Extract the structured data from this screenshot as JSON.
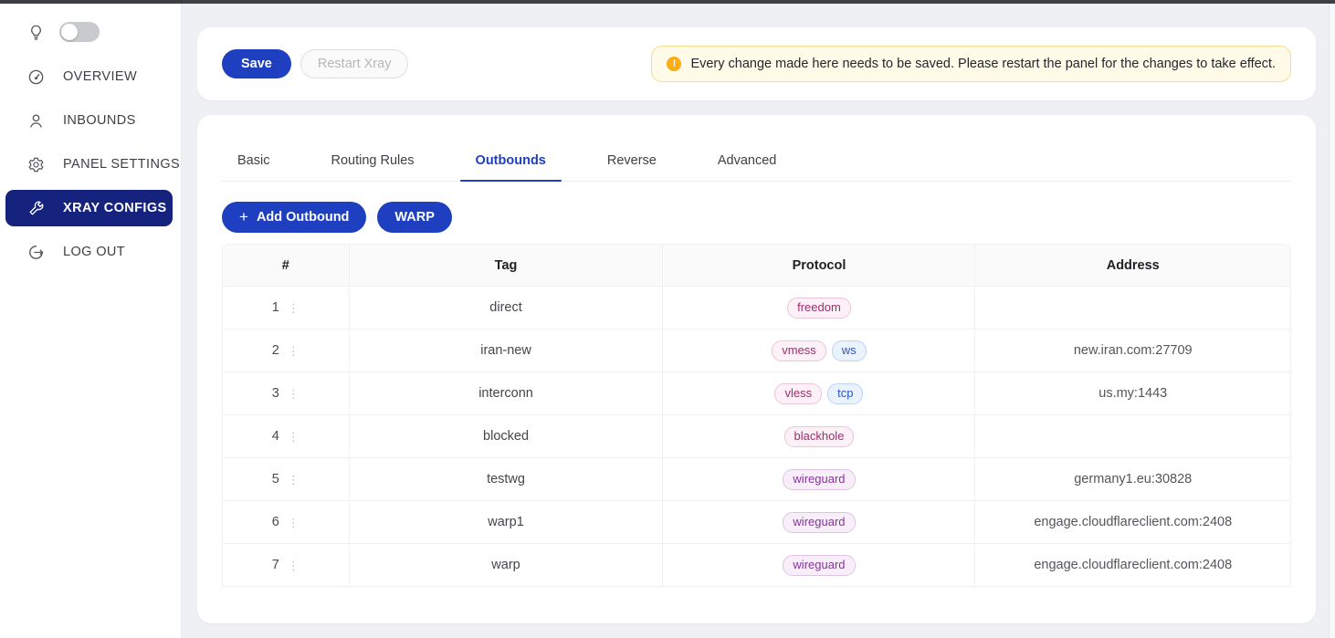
{
  "colors": {
    "accent": "#1d3fc0",
    "sidebar_active": "#16237e",
    "page_bg": "#eef0f4",
    "alert_bg": "#fffbe8",
    "alert_border": "#f7dd8b",
    "warning": "#faad14",
    "badge_magenta": "#9c2f6f",
    "badge_purple": "#86349c",
    "badge_blue": "#2d54c8"
  },
  "sidebar": {
    "theme_toggle": {
      "state": "off",
      "icon": "lightbulb-icon"
    },
    "items": [
      {
        "label": "OVERVIEW",
        "icon": "dashboard-icon",
        "active": false
      },
      {
        "label": "INBOUNDS",
        "icon": "user-icon",
        "active": false
      },
      {
        "label": "PANEL SETTINGS",
        "icon": "gear-icon",
        "active": false
      },
      {
        "label": "XRAY CONFIGS",
        "icon": "wrench-icon",
        "active": true
      },
      {
        "label": "LOG OUT",
        "icon": "logout-icon",
        "active": false
      }
    ]
  },
  "toolbar": {
    "save_label": "Save",
    "restart_label": "Restart Xray",
    "alert_icon": "!",
    "alert_text": "Every change made here needs to be saved. Please restart the panel for the changes to take effect."
  },
  "tabs": [
    {
      "label": "Basic",
      "active": false
    },
    {
      "label": "Routing Rules",
      "active": false
    },
    {
      "label": "Outbounds",
      "active": true
    },
    {
      "label": "Reverse",
      "active": false
    },
    {
      "label": "Advanced",
      "active": false
    }
  ],
  "actions": {
    "add_icon": "+",
    "add_outbound_label": "Add Outbound",
    "warp_label": "WARP"
  },
  "table": {
    "columns": [
      "#",
      "Tag",
      "Protocol",
      "Address"
    ],
    "row_menu_icon": "⋮",
    "rows": [
      {
        "num": "1",
        "tag": "direct",
        "protocols": [
          {
            "label": "freedom",
            "color": "magenta"
          }
        ],
        "address": ""
      },
      {
        "num": "2",
        "tag": "iran-new",
        "protocols": [
          {
            "label": "vmess",
            "color": "magenta"
          },
          {
            "label": "ws",
            "color": "blue"
          }
        ],
        "address": "new.iran.com:27709"
      },
      {
        "num": "3",
        "tag": "interconn",
        "protocols": [
          {
            "label": "vless",
            "color": "magenta"
          },
          {
            "label": "tcp",
            "color": "blue"
          }
        ],
        "address": "us.my:1443"
      },
      {
        "num": "4",
        "tag": "blocked",
        "protocols": [
          {
            "label": "blackhole",
            "color": "magenta"
          }
        ],
        "address": ""
      },
      {
        "num": "5",
        "tag": "testwg",
        "protocols": [
          {
            "label": "wireguard",
            "color": "purple"
          }
        ],
        "address": "germany1.eu:30828"
      },
      {
        "num": "6",
        "tag": "warp1",
        "protocols": [
          {
            "label": "wireguard",
            "color": "purple"
          }
        ],
        "address": "engage.cloudflareclient.com:2408"
      },
      {
        "num": "7",
        "tag": "warp",
        "protocols": [
          {
            "label": "wireguard",
            "color": "purple"
          }
        ],
        "address": "engage.cloudflareclient.com:2408"
      }
    ]
  }
}
